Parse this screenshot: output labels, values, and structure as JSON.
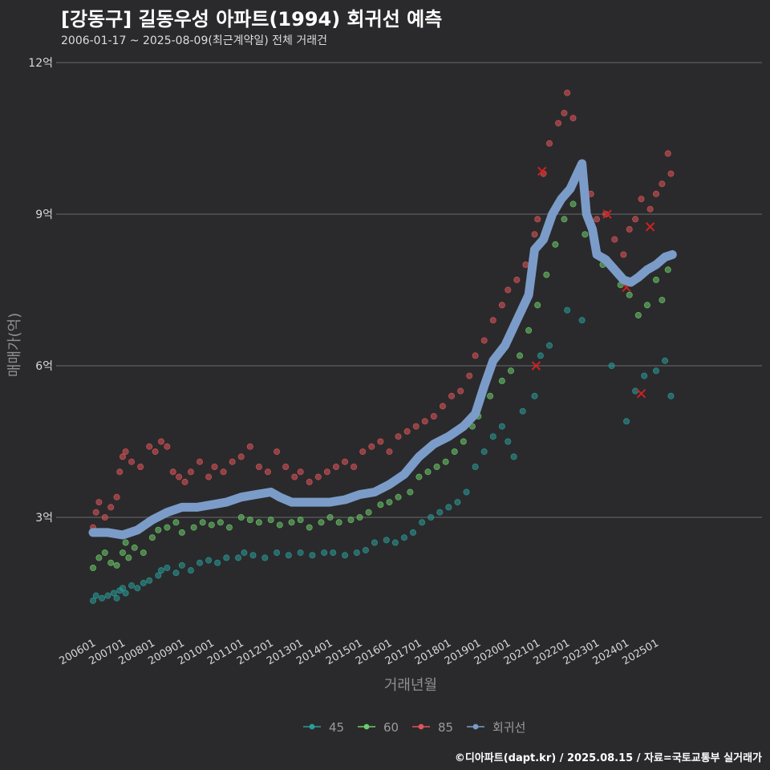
{
  "header": {
    "title": "[강동구] 길동우성 아파트(1994) 회귀선 예측",
    "subtitle": "2006-01-17 ~ 2025-08-09(최근계약일) 전체 거래건"
  },
  "caption": "©디아파트(dapt.kr) / 2025.08.15 / 자료=국토교통부 실거래가",
  "chart_data": {
    "type": "scatter",
    "xlabel": "거래년월",
    "ylabel": "매매가(억)",
    "xlim": [
      2005.9,
      2025.8
    ],
    "ylim": [
      1.0,
      12.0
    ],
    "y_ticks": [
      {
        "value": 3,
        "label": "3억"
      },
      {
        "value": 6,
        "label": "6억"
      },
      {
        "value": 9,
        "label": "9억"
      },
      {
        "value": 12,
        "label": "12억"
      }
    ],
    "x_ticks": [
      {
        "value": 2006.0,
        "label": "200601"
      },
      {
        "value": 2007.0,
        "label": "200701"
      },
      {
        "value": 2008.0,
        "label": "200801"
      },
      {
        "value": 2009.0,
        "label": "200901"
      },
      {
        "value": 2010.0,
        "label": "201001"
      },
      {
        "value": 2011.0,
        "label": "201101"
      },
      {
        "value": 2012.0,
        "label": "201201"
      },
      {
        "value": 2013.0,
        "label": "201301"
      },
      {
        "value": 2014.0,
        "label": "201401"
      },
      {
        "value": 2015.0,
        "label": "201501"
      },
      {
        "value": 2016.0,
        "label": "201601"
      },
      {
        "value": 2017.0,
        "label": "201701"
      },
      {
        "value": 2018.0,
        "label": "201801"
      },
      {
        "value": 2019.0,
        "label": "201901"
      },
      {
        "value": 2020.0,
        "label": "202001"
      },
      {
        "value": 2021.0,
        "label": "202101"
      },
      {
        "value": 2022.0,
        "label": "202201"
      },
      {
        "value": 2023.0,
        "label": "202301"
      },
      {
        "value": 2024.0,
        "label": "202401"
      },
      {
        "value": 2025.0,
        "label": "202501"
      }
    ],
    "legend_position": "bottom",
    "grid": true,
    "series": [
      {
        "name": "45",
        "color": "#2a9d9a",
        "points": [
          [
            2006.0,
            1.35
          ],
          [
            2006.1,
            1.45
          ],
          [
            2006.3,
            1.4
          ],
          [
            2006.5,
            1.45
          ],
          [
            2006.7,
            1.5
          ],
          [
            2006.8,
            1.4
          ],
          [
            2006.9,
            1.55
          ],
          [
            2007.0,
            1.6
          ],
          [
            2007.1,
            1.5
          ],
          [
            2007.3,
            1.65
          ],
          [
            2007.5,
            1.6
          ],
          [
            2007.7,
            1.7
          ],
          [
            2007.9,
            1.75
          ],
          [
            2008.2,
            1.85
          ],
          [
            2008.3,
            1.95
          ],
          [
            2008.5,
            2.0
          ],
          [
            2008.8,
            1.9
          ],
          [
            2009.0,
            2.05
          ],
          [
            2009.3,
            1.95
          ],
          [
            2009.6,
            2.1
          ],
          [
            2009.9,
            2.15
          ],
          [
            2010.2,
            2.1
          ],
          [
            2010.5,
            2.2
          ],
          [
            2010.9,
            2.2
          ],
          [
            2011.1,
            2.3
          ],
          [
            2011.4,
            2.25
          ],
          [
            2011.8,
            2.2
          ],
          [
            2012.2,
            2.3
          ],
          [
            2012.6,
            2.25
          ],
          [
            2013.0,
            2.3
          ],
          [
            2013.4,
            2.25
          ],
          [
            2013.8,
            2.3
          ],
          [
            2014.1,
            2.3
          ],
          [
            2014.5,
            2.25
          ],
          [
            2014.9,
            2.3
          ],
          [
            2015.2,
            2.35
          ],
          [
            2015.5,
            2.5
          ],
          [
            2015.9,
            2.55
          ],
          [
            2016.2,
            2.5
          ],
          [
            2016.5,
            2.6
          ],
          [
            2016.8,
            2.7
          ],
          [
            2017.1,
            2.9
          ],
          [
            2017.4,
            3.0
          ],
          [
            2017.7,
            3.1
          ],
          [
            2018.0,
            3.2
          ],
          [
            2018.3,
            3.3
          ],
          [
            2018.6,
            3.5
          ],
          [
            2018.9,
            4.0
          ],
          [
            2019.2,
            4.3
          ],
          [
            2019.5,
            4.6
          ],
          [
            2019.8,
            4.8
          ],
          [
            2020.0,
            4.5
          ],
          [
            2020.2,
            4.2
          ],
          [
            2020.5,
            5.1
          ],
          [
            2020.9,
            5.4
          ],
          [
            2021.1,
            6.2
          ],
          [
            2021.4,
            6.4
          ],
          [
            2022.0,
            7.1
          ],
          [
            2022.5,
            6.9
          ],
          [
            2023.5,
            6.0
          ],
          [
            2024.0,
            4.9
          ],
          [
            2024.3,
            5.5
          ],
          [
            2024.6,
            5.8
          ],
          [
            2025.0,
            5.9
          ],
          [
            2025.3,
            6.1
          ],
          [
            2025.5,
            5.4
          ]
        ]
      },
      {
        "name": "60",
        "color": "#6dcc6b",
        "points": [
          [
            2006.0,
            2.0
          ],
          [
            2006.2,
            2.2
          ],
          [
            2006.4,
            2.3
          ],
          [
            2006.6,
            2.1
          ],
          [
            2006.8,
            2.05
          ],
          [
            2007.0,
            2.3
          ],
          [
            2007.1,
            2.5
          ],
          [
            2007.2,
            2.2
          ],
          [
            2007.4,
            2.4
          ],
          [
            2007.7,
            2.3
          ],
          [
            2008.0,
            2.6
          ],
          [
            2008.2,
            2.75
          ],
          [
            2008.5,
            2.8
          ],
          [
            2008.8,
            2.9
          ],
          [
            2009.0,
            2.7
          ],
          [
            2009.4,
            2.8
          ],
          [
            2009.7,
            2.9
          ],
          [
            2010.0,
            2.85
          ],
          [
            2010.3,
            2.9
          ],
          [
            2010.6,
            2.8
          ],
          [
            2011.0,
            3.0
          ],
          [
            2011.3,
            2.95
          ],
          [
            2011.6,
            2.9
          ],
          [
            2012.0,
            2.95
          ],
          [
            2012.3,
            2.85
          ],
          [
            2012.7,
            2.9
          ],
          [
            2013.0,
            2.95
          ],
          [
            2013.3,
            2.8
          ],
          [
            2013.7,
            2.9
          ],
          [
            2014.0,
            3.0
          ],
          [
            2014.3,
            2.9
          ],
          [
            2014.7,
            2.95
          ],
          [
            2015.0,
            3.0
          ],
          [
            2015.3,
            3.1
          ],
          [
            2015.7,
            3.25
          ],
          [
            2016.0,
            3.3
          ],
          [
            2016.3,
            3.4
          ],
          [
            2016.7,
            3.5
          ],
          [
            2017.0,
            3.8
          ],
          [
            2017.3,
            3.9
          ],
          [
            2017.6,
            4.0
          ],
          [
            2017.9,
            4.1
          ],
          [
            2018.2,
            4.3
          ],
          [
            2018.5,
            4.5
          ],
          [
            2018.8,
            4.8
          ],
          [
            2019.0,
            5.0
          ],
          [
            2019.4,
            5.4
          ],
          [
            2019.8,
            5.7
          ],
          [
            2020.1,
            5.9
          ],
          [
            2020.4,
            6.2
          ],
          [
            2020.7,
            6.7
          ],
          [
            2021.0,
            7.2
          ],
          [
            2021.3,
            7.8
          ],
          [
            2021.6,
            8.4
          ],
          [
            2021.9,
            8.9
          ],
          [
            2022.2,
            9.2
          ],
          [
            2022.6,
            8.6
          ],
          [
            2023.2,
            8.0
          ],
          [
            2023.8,
            7.6
          ],
          [
            2024.1,
            7.4
          ],
          [
            2024.4,
            7.0
          ],
          [
            2024.7,
            7.2
          ],
          [
            2025.0,
            7.7
          ],
          [
            2025.2,
            7.3
          ],
          [
            2025.4,
            7.9
          ]
        ]
      },
      {
        "name": "85",
        "color": "#e0555b",
        "points": [
          [
            2006.0,
            2.8
          ],
          [
            2006.1,
            3.1
          ],
          [
            2006.2,
            3.3
          ],
          [
            2006.4,
            3.0
          ],
          [
            2006.6,
            3.2
          ],
          [
            2006.8,
            3.4
          ],
          [
            2006.9,
            3.9
          ],
          [
            2007.0,
            4.2
          ],
          [
            2007.1,
            4.3
          ],
          [
            2007.3,
            4.1
          ],
          [
            2007.6,
            4.0
          ],
          [
            2007.9,
            4.4
          ],
          [
            2008.1,
            4.3
          ],
          [
            2008.3,
            4.5
          ],
          [
            2008.5,
            4.4
          ],
          [
            2008.7,
            3.9
          ],
          [
            2008.9,
            3.8
          ],
          [
            2009.1,
            3.7
          ],
          [
            2009.3,
            3.9
          ],
          [
            2009.6,
            4.1
          ],
          [
            2009.9,
            3.8
          ],
          [
            2010.1,
            4.0
          ],
          [
            2010.4,
            3.9
          ],
          [
            2010.7,
            4.1
          ],
          [
            2011.0,
            4.2
          ],
          [
            2011.3,
            4.4
          ],
          [
            2011.6,
            4.0
          ],
          [
            2011.9,
            3.9
          ],
          [
            2012.2,
            4.3
          ],
          [
            2012.5,
            4.0
          ],
          [
            2012.8,
            3.8
          ],
          [
            2013.0,
            3.9
          ],
          [
            2013.3,
            3.7
          ],
          [
            2013.6,
            3.8
          ],
          [
            2013.9,
            3.9
          ],
          [
            2014.2,
            4.0
          ],
          [
            2014.5,
            4.1
          ],
          [
            2014.8,
            4.0
          ],
          [
            2015.1,
            4.3
          ],
          [
            2015.4,
            4.4
          ],
          [
            2015.7,
            4.5
          ],
          [
            2016.0,
            4.3
          ],
          [
            2016.3,
            4.6
          ],
          [
            2016.6,
            4.7
          ],
          [
            2016.9,
            4.8
          ],
          [
            2017.2,
            4.9
          ],
          [
            2017.5,
            5.0
          ],
          [
            2017.8,
            5.2
          ],
          [
            2018.1,
            5.4
          ],
          [
            2018.4,
            5.5
          ],
          [
            2018.7,
            5.8
          ],
          [
            2018.9,
            6.2
          ],
          [
            2019.2,
            6.5
          ],
          [
            2019.5,
            6.9
          ],
          [
            2019.8,
            7.2
          ],
          [
            2020.0,
            7.5
          ],
          [
            2020.3,
            7.7
          ],
          [
            2020.6,
            8.0
          ],
          [
            2020.9,
            8.6
          ],
          [
            2021.0,
            8.9
          ],
          [
            2021.2,
            9.8
          ],
          [
            2021.4,
            10.4
          ],
          [
            2021.7,
            10.8
          ],
          [
            2021.9,
            11.0
          ],
          [
            2022.0,
            11.4
          ],
          [
            2022.2,
            10.9
          ],
          [
            2022.5,
            10.0
          ],
          [
            2022.8,
            9.4
          ],
          [
            2023.0,
            8.9
          ],
          [
            2023.3,
            9.0
          ],
          [
            2023.6,
            8.5
          ],
          [
            2023.9,
            8.2
          ],
          [
            2024.1,
            8.7
          ],
          [
            2024.3,
            8.9
          ],
          [
            2024.5,
            9.3
          ],
          [
            2024.8,
            9.1
          ],
          [
            2025.0,
            9.4
          ],
          [
            2025.2,
            9.6
          ],
          [
            2025.4,
            10.2
          ],
          [
            2025.5,
            9.8
          ]
        ]
      }
    ],
    "crosses": [
      [
        2020.95,
        6.0
      ],
      [
        2021.15,
        9.85
      ],
      [
        2023.35,
        9.0
      ],
      [
        2024.0,
        7.55
      ],
      [
        2024.5,
        5.45
      ],
      [
        2024.8,
        8.75
      ]
    ],
    "cross_color": "#cc2222",
    "regression": {
      "name": "회귀선",
      "color": "#7b9cc8",
      "points": [
        [
          2006.0,
          2.7
        ],
        [
          2006.5,
          2.7
        ],
        [
          2007.0,
          2.65
        ],
        [
          2007.5,
          2.75
        ],
        [
          2008.0,
          2.95
        ],
        [
          2008.5,
          3.1
        ],
        [
          2009.0,
          3.2
        ],
        [
          2009.5,
          3.2
        ],
        [
          2010.0,
          3.25
        ],
        [
          2010.5,
          3.3
        ],
        [
          2011.0,
          3.4
        ],
        [
          2011.5,
          3.45
        ],
        [
          2012.0,
          3.5
        ],
        [
          2012.3,
          3.4
        ],
        [
          2012.7,
          3.3
        ],
        [
          2013.0,
          3.3
        ],
        [
          2013.5,
          3.3
        ],
        [
          2014.0,
          3.3
        ],
        [
          2014.5,
          3.35
        ],
        [
          2015.0,
          3.45
        ],
        [
          2015.5,
          3.5
        ],
        [
          2016.0,
          3.65
        ],
        [
          2016.5,
          3.85
        ],
        [
          2017.0,
          4.2
        ],
        [
          2017.5,
          4.45
        ],
        [
          2018.0,
          4.6
        ],
        [
          2018.5,
          4.8
        ],
        [
          2018.9,
          5.05
        ],
        [
          2019.2,
          5.6
        ],
        [
          2019.5,
          6.1
        ],
        [
          2019.9,
          6.4
        ],
        [
          2020.3,
          6.9
        ],
        [
          2020.7,
          7.4
        ],
        [
          2020.9,
          8.3
        ],
        [
          2021.2,
          8.5
        ],
        [
          2021.5,
          9.0
        ],
        [
          2021.8,
          9.3
        ],
        [
          2022.1,
          9.5
        ],
        [
          2022.3,
          9.75
        ],
        [
          2022.5,
          10.0
        ],
        [
          2022.65,
          9.0
        ],
        [
          2022.85,
          8.7
        ],
        [
          2023.0,
          8.2
        ],
        [
          2023.3,
          8.1
        ],
        [
          2023.6,
          7.9
        ],
        [
          2023.9,
          7.7
        ],
        [
          2024.15,
          7.65
        ],
        [
          2024.4,
          7.75
        ],
        [
          2024.7,
          7.9
        ],
        [
          2025.0,
          8.0
        ],
        [
          2025.3,
          8.15
        ],
        [
          2025.55,
          8.2
        ]
      ]
    }
  }
}
